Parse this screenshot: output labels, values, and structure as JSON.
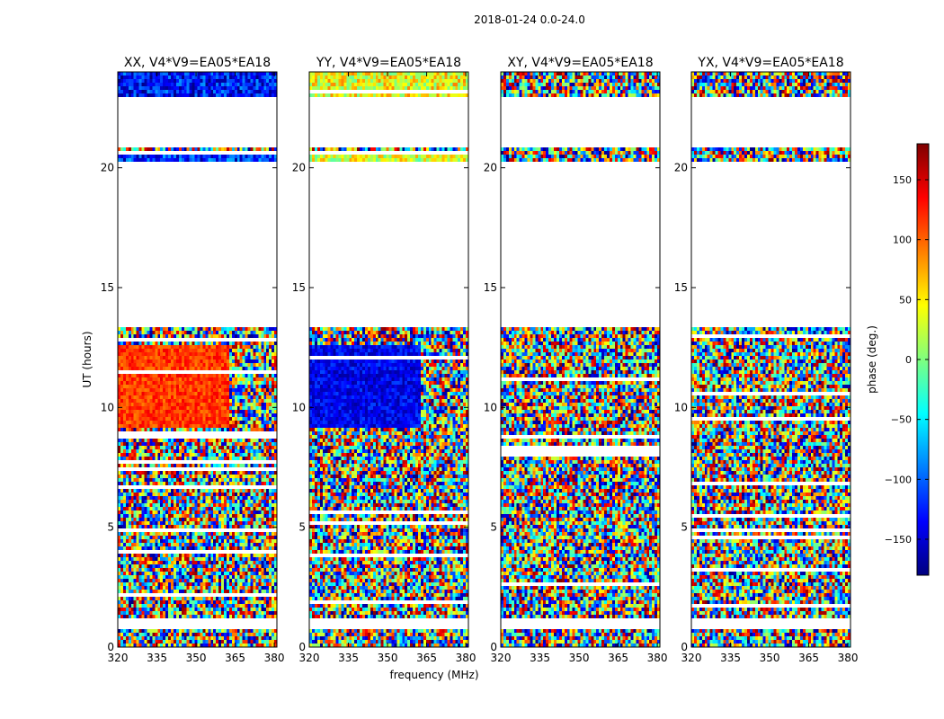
{
  "figure_title": "2018-01-24 0.0-24.0",
  "chart_data": {
    "type": "heatmap",
    "title": "2018-01-24 0.0-24.0",
    "xlabel": "frequency (MHz)",
    "ylabel": "UT (hours)",
    "xlim": [
      320,
      381
    ],
    "ylim": [
      0,
      24
    ],
    "x_ticks": [
      320,
      335,
      350,
      365,
      380
    ],
    "y_ticks": [
      0,
      5,
      10,
      15,
      20
    ],
    "colorbar": {
      "label": "phase (deg.)",
      "range": [
        -180,
        180
      ],
      "ticks": [
        -150,
        -100,
        -50,
        0,
        50,
        100,
        150
      ],
      "tick_labels": [
        "−150",
        "−100",
        "−50",
        "0",
        "50",
        "100",
        "150"
      ],
      "colormap": "jet",
      "colors": [
        "#00007f",
        "#0000ff",
        "#007fff",
        "#00ffff",
        "#7fff7f",
        "#ffff00",
        "#ff7f00",
        "#ff0000",
        "#7f0000"
      ]
    },
    "panels": [
      {
        "title": "XX, V4*V9=EA05*EA18",
        "pol": "XX",
        "coherent_blocks": [
          {
            "t_start": 9.1,
            "t_end": 12.6,
            "phase_mean": 115,
            "phase_spread": 25,
            "f_end": 363
          },
          {
            "t_start": 20.2,
            "t_end": 20.7,
            "phase_mean": -120,
            "phase_spread": 50
          },
          {
            "t_start": 23.0,
            "t_end": 24.0,
            "phase_mean": -130,
            "phase_spread": 50
          }
        ],
        "gaps": [
          [
            0.8,
            1.2
          ],
          [
            13.4,
            20.2
          ],
          [
            20.8,
            23.0
          ]
        ]
      },
      {
        "title": "YY, V4*V9=EA05*EA18",
        "pol": "YY",
        "coherent_blocks": [
          {
            "t_start": 9.1,
            "t_end": 12.6,
            "phase_mean": -140,
            "phase_spread": 30,
            "f_end": 363
          },
          {
            "t_start": 20.2,
            "t_end": 20.7,
            "phase_mean": 30,
            "phase_spread": 50
          },
          {
            "t_start": 23.0,
            "t_end": 24.0,
            "phase_mean": 40,
            "phase_spread": 50
          }
        ],
        "gaps": [
          [
            0.8,
            1.2
          ],
          [
            13.4,
            20.2
          ],
          [
            20.8,
            23.0
          ]
        ]
      },
      {
        "title": "XY, V4*V9=EA05*EA18",
        "pol": "XY",
        "coherent_blocks": [],
        "gaps": [
          [
            0.8,
            1.2
          ],
          [
            13.4,
            20.2
          ],
          [
            20.8,
            23.0
          ]
        ]
      },
      {
        "title": "YX, V4*V9=EA05*EA18",
        "pol": "YX",
        "coherent_blocks": [],
        "gaps": [
          [
            0.8,
            1.2
          ],
          [
            13.4,
            20.2
          ],
          [
            20.8,
            23.0
          ]
        ]
      }
    ]
  }
}
